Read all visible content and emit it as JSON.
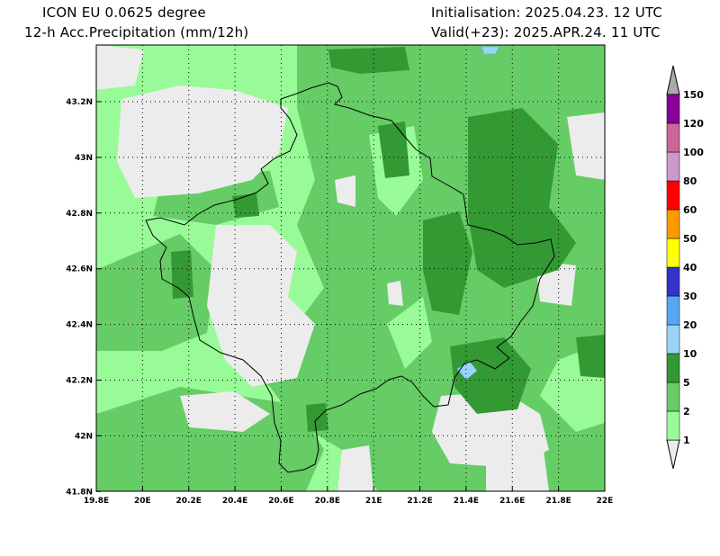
{
  "header": {
    "model": "ICON EU 0.0625 degree",
    "variable": "12-h Acc.Precipitation (mm/12h)",
    "init": "Initialisation: 2025.04.23. 12 UTC",
    "valid": "Valid(+23): 2025.APR.24. 11 UTC"
  },
  "axes": {
    "lon_ticks": [
      "19.8E",
      "20E",
      "20.2E",
      "20.4E",
      "20.6E",
      "20.8E",
      "21E",
      "21.2E",
      "21.4E",
      "21.6E",
      "21.8E",
      "22E"
    ],
    "lat_ticks": [
      "43.2N",
      "43N",
      "42.8N",
      "42.6N",
      "42.4N",
      "42.2N",
      "42N",
      "41.8N"
    ]
  },
  "colorbar": {
    "levels": [
      "1",
      "2",
      "5",
      "10",
      "20",
      "30",
      "40",
      "50",
      "60",
      "80",
      "100",
      "120",
      "150"
    ],
    "colors": [
      "#98fb98",
      "#66cc66",
      "#339933",
      "#99d4f8",
      "#55a7f5",
      "#3333cc",
      "#ffff00",
      "#ff9900",
      "#ff0000",
      "#cc99cc",
      "#cc6699",
      "#880099"
    ],
    "under_color": "#ececec",
    "over_color": "#aaaaaa"
  },
  "palette": {
    "none": "#ececec",
    "light": "#98fb98",
    "medium": "#66cc66",
    "dark": "#339933",
    "blue": "#99d4f8"
  }
}
